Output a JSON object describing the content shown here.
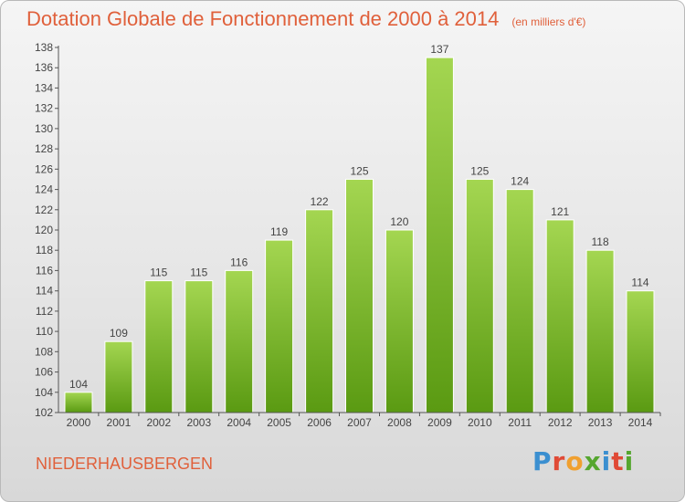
{
  "title": "Dotation Globale de Fonctionnement de 2000 à 2014",
  "unit_note": "(en milliers d'€)",
  "commune": "NIEDERHAUSBERGEN",
  "logo_text": "Proxiti",
  "colors": {
    "title": "#e0603b",
    "bar_top": "#9ed34b",
    "bar_bottom": "#5e9e14",
    "axis": "#555555"
  },
  "chart_data": {
    "type": "bar",
    "categories": [
      "2000",
      "2001",
      "2002",
      "2003",
      "2004",
      "2005",
      "2006",
      "2007",
      "2008",
      "2009",
      "2010",
      "2011",
      "2012",
      "2013",
      "2014"
    ],
    "values": [
      104,
      109,
      115,
      115,
      116,
      119,
      122,
      125,
      120,
      137,
      125,
      124,
      121,
      118,
      114
    ],
    "ylim": [
      102,
      138
    ],
    "yticks": [
      102,
      104,
      106,
      108,
      110,
      112,
      114,
      116,
      118,
      120,
      122,
      124,
      126,
      128,
      130,
      132,
      134,
      136,
      138
    ],
    "grid": false,
    "legend": "none"
  }
}
